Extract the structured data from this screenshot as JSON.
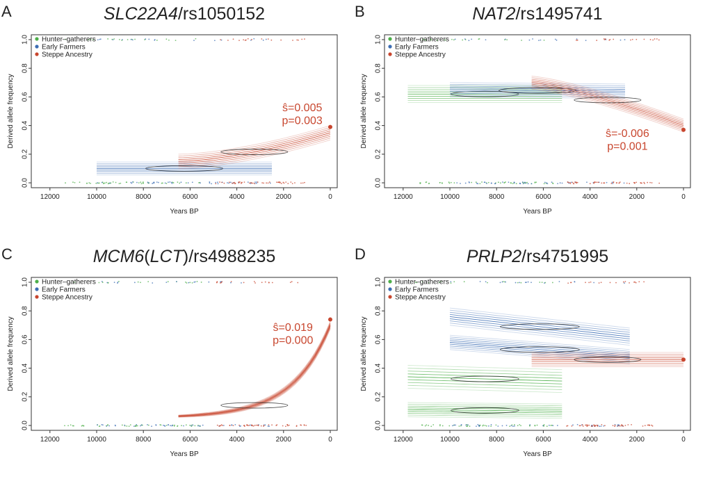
{
  "figure": {
    "legend_entries": [
      {
        "label": "Hunter–gatherers",
        "color": "#4daf4a"
      },
      {
        "label": "Early Farmers",
        "color": "#3c6db4"
      },
      {
        "label": "Steppe Ancestry",
        "color": "#c8462e"
      }
    ],
    "colors": {
      "hunter_gatherers": "#4daf4a",
      "early_farmers": "#3c6db4",
      "steppe": "#c8462e",
      "annotation": "#c8462e"
    }
  },
  "chart_data": [
    {
      "type": "line",
      "letter": "A",
      "title_italic": "SLC22A4",
      "title_rest": "/rs1050152",
      "xlabel": "Years BP",
      "ylabel": "Derived allele frequency",
      "xlim": [
        12500,
        0
      ],
      "ylim": [
        0,
        1
      ],
      "x_ticks": [
        12000,
        10000,
        8000,
        6000,
        4000,
        2000,
        0
      ],
      "y_ticks": [
        "0.0",
        "0.2",
        "0.4",
        "0.6",
        "0.8",
        "1.0"
      ],
      "legend_position": "top-left",
      "annotation": {
        "s_label": "ŝ=0.005",
        "p_label": "p=0.003",
        "x": 1200,
        "y_s": 0.5,
        "y_p": 0.41
      },
      "endpoint": {
        "x": 0,
        "y": 0.39
      },
      "series": [
        {
          "group": "early_farmers",
          "x": [
            10000,
            2500
          ],
          "y": [
            0.1,
            0.1
          ],
          "spread": 0.045
        },
        {
          "group": "steppe",
          "x": [
            6500,
            0
          ],
          "y": [
            0.15,
            0.35
          ],
          "curve": "convex",
          "spread": 0.05
        }
      ]
    },
    {
      "type": "line",
      "letter": "B",
      "title_italic": "NAT2",
      "title_rest": "/rs1495741",
      "xlabel": "Years BP",
      "ylabel": "Derived allele frequency",
      "xlim": [
        12500,
        0
      ],
      "ylim": [
        0,
        1
      ],
      "x_ticks": [
        12000,
        10000,
        8000,
        6000,
        4000,
        2000,
        0
      ],
      "y_ticks": [
        "0.0",
        "0.2",
        "0.4",
        "0.6",
        "0.8",
        "1.0"
      ],
      "legend_position": "top-left",
      "annotation": {
        "s_label": "ŝ=-0.006",
        "p_label": "p=0.001",
        "x": 2400,
        "y_s": 0.32,
        "y_p": 0.23
      },
      "endpoint": {
        "x": 0,
        "y": 0.37
      },
      "series": [
        {
          "group": "hunter_gatherers",
          "x": [
            11800,
            5200
          ],
          "y": [
            0.62,
            0.62
          ],
          "spread": 0.06
        },
        {
          "group": "early_farmers",
          "x": [
            10000,
            2500
          ],
          "y": [
            0.65,
            0.64
          ],
          "spread": 0.05
        },
        {
          "group": "steppe",
          "x": [
            6500,
            0
          ],
          "y": [
            0.7,
            0.4
          ],
          "curve": "concave",
          "spread": 0.045
        }
      ]
    },
    {
      "type": "line",
      "letter": "C",
      "title_italic": "MCM6",
      "title_paren_italic": "LCT",
      "title_rest": "/rs4988235",
      "xlabel": "Years BP",
      "ylabel": "Derived allele frequency",
      "xlim": [
        12500,
        0
      ],
      "ylim": [
        0,
        1
      ],
      "x_ticks": [
        12000,
        10000,
        8000,
        6000,
        4000,
        2000,
        0
      ],
      "y_ticks": [
        "0.0",
        "0.2",
        "0.4",
        "0.6",
        "0.8",
        "1.0"
      ],
      "legend_position": "top-left",
      "annotation": {
        "s_label": "ŝ=0.019",
        "p_label": "p=0.000",
        "x": 1600,
        "y_s": 0.66,
        "y_p": 0.57
      },
      "endpoint": {
        "x": 0,
        "y": 0.74
      },
      "series": [
        {
          "group": "steppe",
          "x": [
            6500,
            0
          ],
          "y": [
            0.065,
            0.7
          ],
          "curve": "exponential",
          "spread": 0.02
        }
      ]
    },
    {
      "type": "line",
      "letter": "D",
      "title_italic": "PRLP2",
      "title_rest": "/rs4751995",
      "xlabel": "Years BP",
      "ylabel": "Derived allele frequency",
      "xlim": [
        12500,
        0
      ],
      "ylim": [
        0,
        1
      ],
      "x_ticks": [
        12000,
        10000,
        8000,
        6000,
        4000,
        2000,
        0
      ],
      "y_ticks": [
        "0.0",
        "0.2",
        "0.4",
        "0.6",
        "0.8",
        "1.0"
      ],
      "legend_position": "top-left",
      "endpoint": {
        "x": 0,
        "y": 0.46
      },
      "series": [
        {
          "group": "hunter_gatherers",
          "x": [
            11800,
            5200
          ],
          "y": [
            0.34,
            0.31
          ],
          "spread": 0.08
        },
        {
          "group": "hunter_gatherers",
          "x": [
            11800,
            5200
          ],
          "y": [
            0.11,
            0.1
          ],
          "spread": 0.05
        },
        {
          "group": "early_farmers",
          "x": [
            10000,
            2300
          ],
          "y": [
            0.76,
            0.62
          ],
          "spread": 0.06
        },
        {
          "group": "early_farmers",
          "x": [
            10000,
            2300
          ],
          "y": [
            0.58,
            0.48
          ],
          "spread": 0.05
        },
        {
          "group": "steppe",
          "x": [
            6500,
            0
          ],
          "y": [
            0.46,
            0.46
          ],
          "spread": 0.05
        }
      ]
    }
  ]
}
